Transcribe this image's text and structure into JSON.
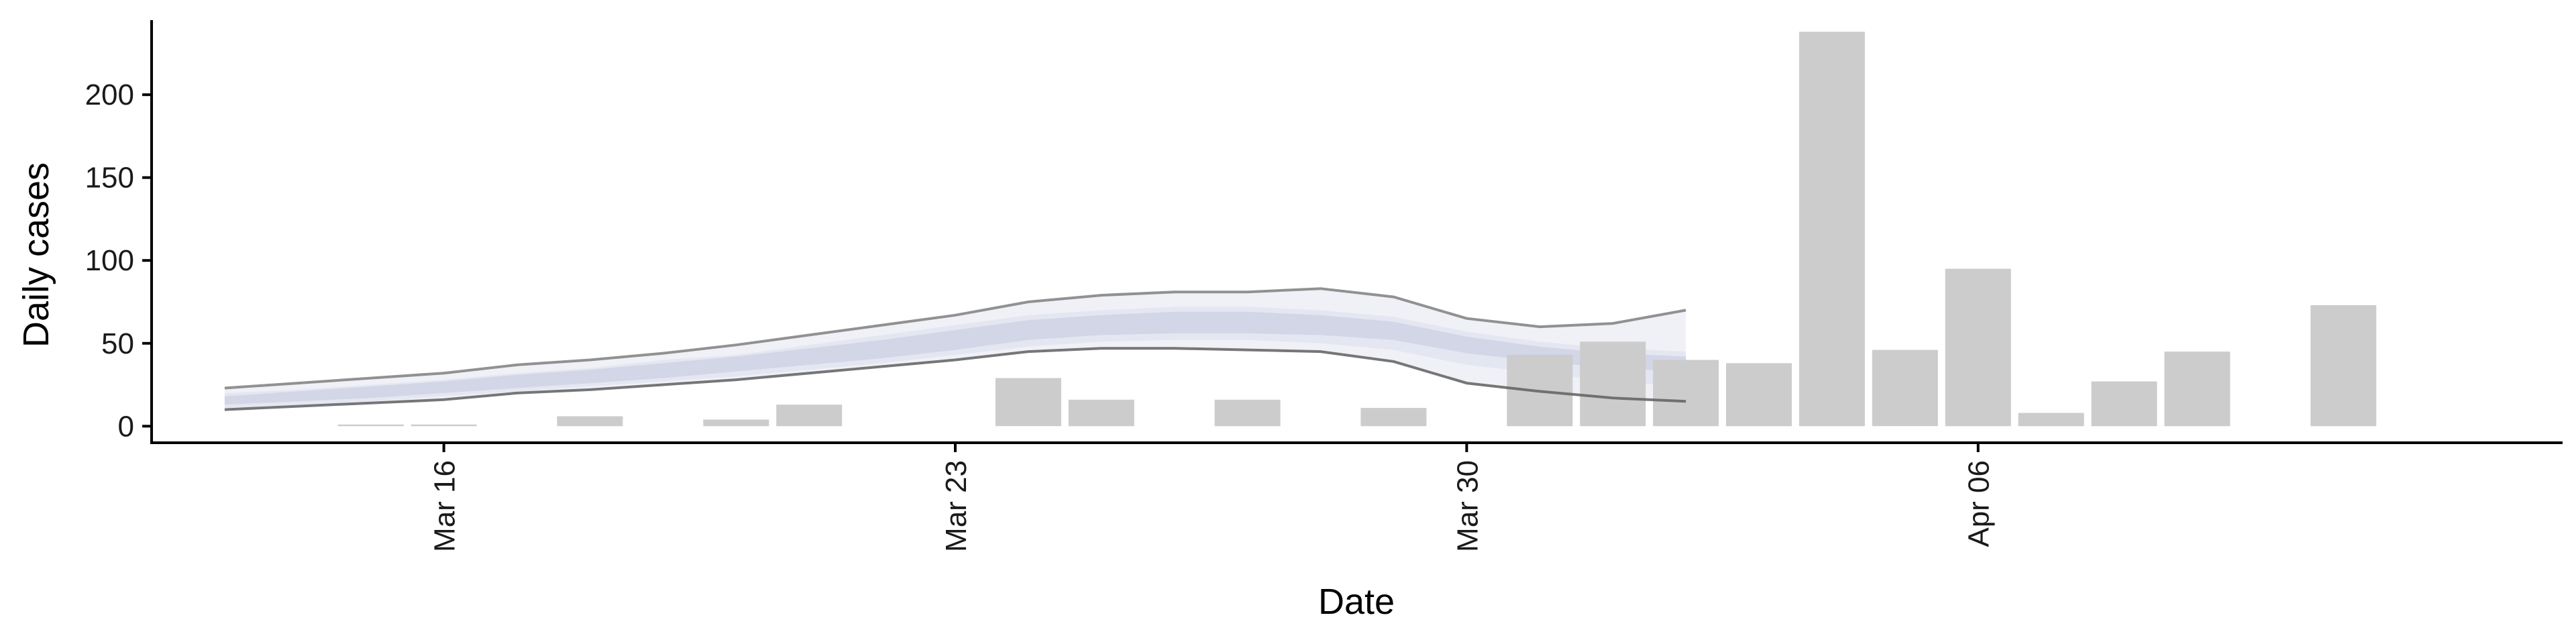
{
  "chart_data": {
    "type": "bar",
    "xlabel": "Date",
    "ylabel": "Daily cases",
    "ylim": [
      -10,
      245
    ],
    "x_range": [
      "2020-03-12",
      "2020-04-14"
    ],
    "x_ticks": [
      {
        "date": "2020-03-16",
        "label": "Mar 16"
      },
      {
        "date": "2020-03-23",
        "label": "Mar 23"
      },
      {
        "date": "2020-03-30",
        "label": "Mar 30"
      },
      {
        "date": "2020-04-06",
        "label": "Apr 06"
      }
    ],
    "y_ticks": [
      0,
      50,
      100,
      150,
      200
    ],
    "grid": false,
    "bars": [
      {
        "date": "2020-03-15",
        "value": 1
      },
      {
        "date": "2020-03-16",
        "value": 1
      },
      {
        "date": "2020-03-18",
        "value": 6
      },
      {
        "date": "2020-03-20",
        "value": 4
      },
      {
        "date": "2020-03-21",
        "value": 13
      },
      {
        "date": "2020-03-24",
        "value": 29
      },
      {
        "date": "2020-03-25",
        "value": 16
      },
      {
        "date": "2020-03-27",
        "value": 16
      },
      {
        "date": "2020-03-29",
        "value": 11
      },
      {
        "date": "2020-03-31",
        "value": 43
      },
      {
        "date": "2020-04-01",
        "value": 51
      },
      {
        "date": "2020-04-02",
        "value": 40
      },
      {
        "date": "2020-04-03",
        "value": 38
      },
      {
        "date": "2020-04-04",
        "value": 238
      },
      {
        "date": "2020-04-05",
        "value": 46
      },
      {
        "date": "2020-04-06",
        "value": 95
      },
      {
        "date": "2020-04-07",
        "value": 8
      },
      {
        "date": "2020-04-08",
        "value": 27
      },
      {
        "date": "2020-04-09",
        "value": 45
      },
      {
        "date": "2020-04-11",
        "value": 73
      }
    ],
    "estimate": {
      "dates": [
        "2020-03-13",
        "2020-03-14",
        "2020-03-15",
        "2020-03-16",
        "2020-03-17",
        "2020-03-18",
        "2020-03-19",
        "2020-03-20",
        "2020-03-21",
        "2020-03-22",
        "2020-03-23",
        "2020-03-24",
        "2020-03-25",
        "2020-03-26",
        "2020-03-27",
        "2020-03-28",
        "2020-03-29",
        "2020-03-30",
        "2020-03-31",
        "2020-04-01",
        "2020-04-02"
      ],
      "outer_upper": [
        23,
        26,
        29,
        32,
        37,
        40,
        44,
        49,
        55,
        61,
        67,
        75,
        79,
        81,
        81,
        83,
        78,
        65,
        60,
        62,
        70
      ],
      "outer_lower": [
        10,
        12,
        14,
        16,
        20,
        22,
        25,
        28,
        32,
        36,
        40,
        45,
        47,
        47,
        46,
        45,
        39,
        26,
        21,
        17,
        15
      ],
      "inner_upper": [
        18,
        21,
        24,
        27,
        31,
        34,
        38,
        42,
        47,
        52,
        58,
        64,
        67,
        69,
        69,
        67,
        63,
        54,
        48,
        44,
        42
      ],
      "inner_lower": [
        13,
        15,
        17,
        20,
        23,
        26,
        29,
        33,
        37,
        41,
        46,
        52,
        55,
        56,
        56,
        55,
        52,
        44,
        39,
        35,
        33
      ],
      "mid_upper": [
        20,
        22,
        25,
        28,
        32,
        35,
        40,
        43,
        49,
        55,
        61,
        67,
        70,
        72,
        72,
        70,
        66,
        57,
        51,
        47,
        45
      ],
      "mid_lower": [
        11,
        13,
        15,
        18,
        21,
        24,
        27,
        30,
        34,
        38,
        43,
        48,
        51,
        52,
        52,
        50,
        46,
        37,
        32,
        27,
        24
      ]
    },
    "colors": {
      "bars": "#cccccc",
      "band_outer": "#eef0f6",
      "band_mid": "#e2e5ef",
      "band_inner": "#cfd4e4",
      "upper_line": "#7f7f7f",
      "lower_line": "#5f5f5f",
      "axis": "#000000"
    }
  }
}
